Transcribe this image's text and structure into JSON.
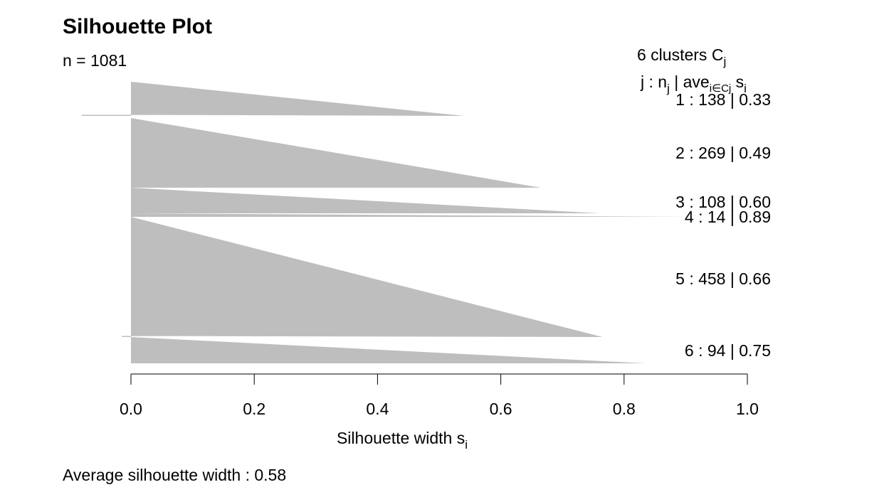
{
  "chart_data": {
    "type": "bar",
    "orientation": "horizontal",
    "title": "Silhouette Plot",
    "subtitle": "n = 1081",
    "xlabel": "Silhouette width s",
    "xlabel_subscript": "i",
    "xlim": [
      0,
      1
    ],
    "x_ticks": [
      "0.0",
      "0.2",
      "0.4",
      "0.6",
      "0.8",
      "1.0"
    ],
    "bar_color": "#bebebe",
    "legend_header": {
      "line1_prefix": "6  clusters  C",
      "line1_sub": "j",
      "line2_j": "j :  n",
      "line2_nsub": "j",
      "line2_ave": " | ave",
      "line2_avesub": "i∈Cj",
      "line2_s": "  s",
      "line2_ssub": "i"
    },
    "clusters": [
      {
        "id": 1,
        "n": 138,
        "avg": 0.33,
        "label": "1 :   138  |  0.33",
        "max": 0.54,
        "min": -0.08
      },
      {
        "id": 2,
        "n": 269,
        "avg": 0.49,
        "label": "2 :   269  |  0.49",
        "max": 0.665,
        "min": 0.005
      },
      {
        "id": 3,
        "n": 108,
        "avg": 0.6,
        "label": "3 :   108  |  0.60",
        "max": 0.76,
        "min": 0.03
      },
      {
        "id": 4,
        "n": 14,
        "avg": 0.89,
        "label": "4 :   14  |  0.89",
        "max": 0.91,
        "min": 0.86
      },
      {
        "id": 5,
        "n": 458,
        "avg": 0.66,
        "label": "5 :   458  |  0.66",
        "max": 0.765,
        "min": -0.015
      },
      {
        "id": 6,
        "n": 94,
        "avg": 0.75,
        "label": "6 :   94  |  0.75",
        "max": 0.835,
        "min": 0.04
      }
    ],
    "footer": "Average silhouette width :  0.58"
  }
}
